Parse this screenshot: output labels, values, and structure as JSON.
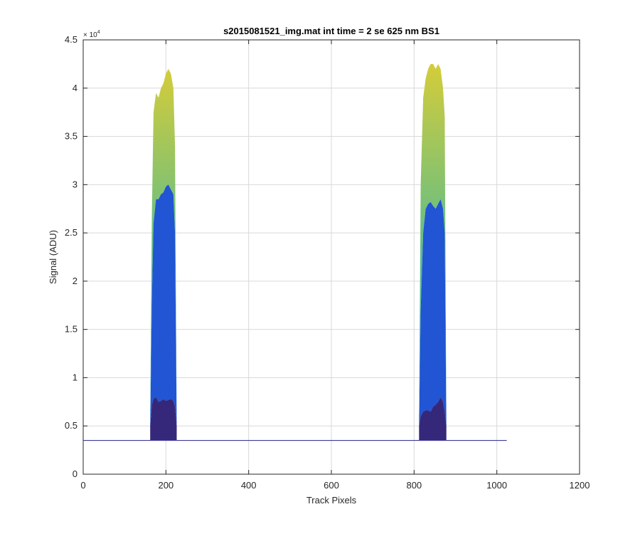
{
  "chart_data": {
    "type": "area",
    "title": "s2015081521_img.mat int time = 2 se  625 nm BS1",
    "xlabel": "Track Pixels",
    "ylabel": "Signal (ADU)",
    "xlim": [
      0,
      1200
    ],
    "ylim": [
      0,
      4.5
    ],
    "y_multiplier": "× 10",
    "y_exponent": "4",
    "grid": true,
    "x_ticks": [
      0,
      200,
      400,
      600,
      800,
      1000,
      1200
    ],
    "x_tick_labels": [
      "0",
      "200",
      "400",
      "600",
      "800",
      "1000",
      "1200"
    ],
    "y_ticks": [
      0,
      0.5,
      1,
      1.5,
      2,
      2.5,
      3,
      3.5,
      4,
      4.5
    ],
    "y_tick_labels": [
      "0",
      "0.5",
      "1",
      "1.5",
      "2",
      "2.5",
      "3",
      "3.5",
      "4",
      "4.5"
    ],
    "baseline": {
      "x": [
        1,
        1024
      ],
      "y": 0.35
    },
    "colors": {
      "band_dark": "#35287a",
      "band_blue": "#2155d4",
      "band_teal": "#1fa8b8",
      "band_green": "#6cbf80",
      "band_yellow": "#d4cc3a",
      "baseline": "#3b3b9a",
      "grid": "#d9d9d9",
      "axis": "#262626"
    },
    "peaks": [
      {
        "x": [
          162,
          166,
          170,
          176,
          182,
          188,
          194,
          200,
          206,
          212,
          218,
          222,
          226
        ],
        "top": [
          0.5,
          2.7,
          3.75,
          3.95,
          3.9,
          4.0,
          4.05,
          4.15,
          4.2,
          4.15,
          4.0,
          3.4,
          0.5
        ],
        "mid": [
          0.5,
          1.8,
          2.6,
          2.85,
          2.85,
          2.9,
          2.92,
          2.98,
          3.0,
          2.95,
          2.9,
          2.5,
          0.5
        ],
        "low": [
          0.5,
          0.72,
          0.78,
          0.8,
          0.75,
          0.76,
          0.78,
          0.76,
          0.77,
          0.78,
          0.76,
          0.7,
          0.5
        ]
      },
      {
        "x": [
          812,
          816,
          822,
          828,
          834,
          840,
          846,
          852,
          858,
          864,
          870,
          874,
          878
        ],
        "top": [
          0.5,
          3.0,
          3.9,
          4.1,
          4.2,
          4.25,
          4.25,
          4.2,
          4.25,
          4.2,
          4.0,
          3.7,
          0.5
        ],
        "mid": [
          0.5,
          1.7,
          2.5,
          2.75,
          2.8,
          2.82,
          2.78,
          2.75,
          2.8,
          2.85,
          2.75,
          2.5,
          0.5
        ],
        "low": [
          0.5,
          0.6,
          0.65,
          0.66,
          0.66,
          0.65,
          0.7,
          0.72,
          0.75,
          0.8,
          0.75,
          0.65,
          0.5
        ]
      }
    ]
  }
}
